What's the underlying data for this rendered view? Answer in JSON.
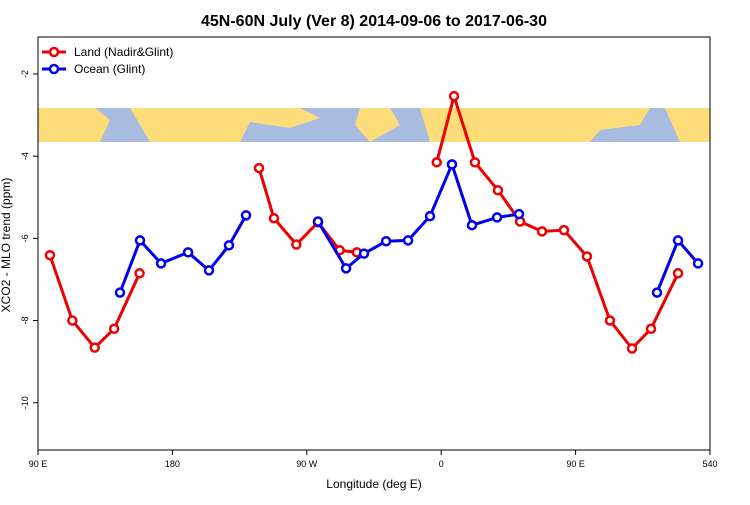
{
  "chart_data": {
    "type": "line",
    "title": "45N-60N July (Ver 8)   2014-09-06 to 2017-06-30",
    "x_label": "Longitude (deg E)",
    "y_label": "XCO2 - MLO trend (ppm)",
    "xlim": [
      90,
      540
    ],
    "xticks": [
      {
        "value": 90,
        "label": "90 E"
      },
      180,
      {
        "value": 270,
        "label": "90 W"
      },
      {
        "value": 360,
        "label": "0"
      },
      {
        "value": 450,
        "label": "90 E"
      },
      540
    ],
    "ylim": [
      -11.15,
      -1.1
    ],
    "yticks": [
      -10,
      -8,
      -6,
      -4,
      -2
    ],
    "legend": "top-left",
    "series": [
      {
        "name": "Land (Nadir&Glint)",
        "color": "#ee0000",
        "x": [
          98,
          113,
          128,
          141,
          158,
          null,
          238,
          248,
          263,
          277.5,
          292,
          303.5,
          null,
          357,
          368.6,
          382.6,
          398,
          412.8,
          427.5,
          442.2,
          457.6,
          473,
          487.8,
          500.5,
          518.6
        ],
        "values": [
          -6.41,
          -8.0,
          -8.66,
          -8.2,
          -6.85,
          null,
          -4.29,
          -5.51,
          -6.15,
          -5.61,
          -6.29,
          -6.34,
          null,
          -4.15,
          -2.54,
          -4.15,
          -4.83,
          -5.59,
          -5.83,
          -5.8,
          -6.44,
          -8.0,
          -8.68,
          -8.2,
          -6.85
        ]
      },
      {
        "name": "Ocean (Glint)",
        "color": "#0000ee",
        "x": [
          144.9,
          158.3,
          172.4,
          190.5,
          204.5,
          217.9,
          229.3,
          null,
          277.5,
          296.3,
          308.3,
          323.1,
          337.8,
          352.5,
          367.2,
          380.6,
          397.4,
          412.1,
          null,
          504.5,
          518.6,
          532
        ],
        "values": [
          -7.32,
          -6.05,
          -6.61,
          -6.34,
          -6.78,
          -6.17,
          -5.44,
          null,
          -5.59,
          -6.73,
          -6.37,
          -6.07,
          -6.05,
          -5.46,
          -4.2,
          -5.68,
          -5.49,
          -5.41,
          null,
          -7.32,
          -6.05,
          -6.61
        ]
      }
    ]
  }
}
